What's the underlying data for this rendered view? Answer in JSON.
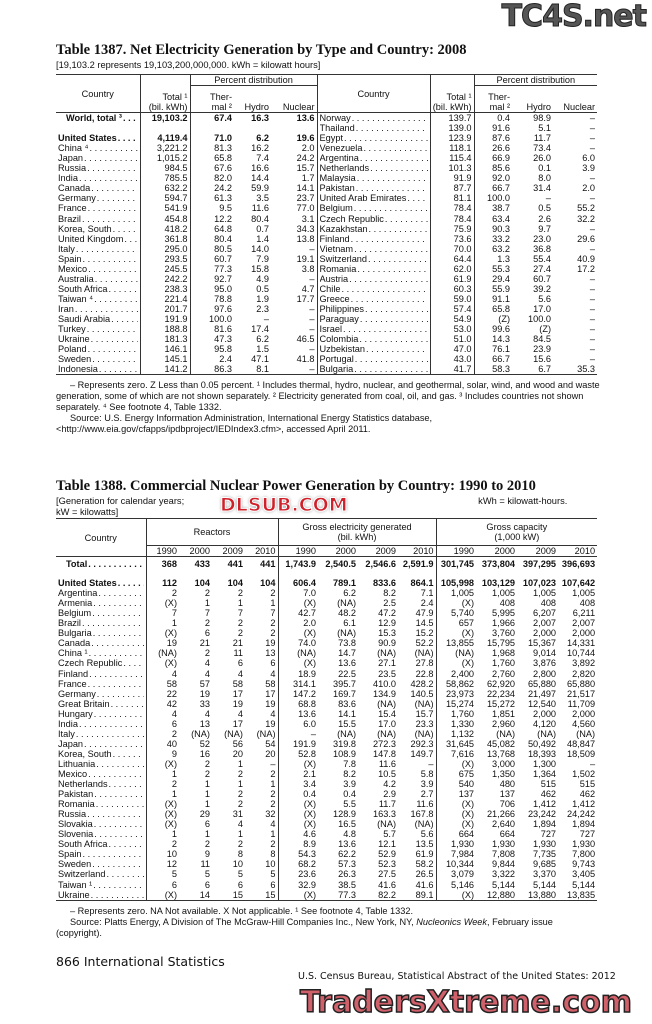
{
  "watermarks": {
    "top": "TC4S.net",
    "middle": "DLSUB.COM",
    "bottom": "TradersXtreme.com"
  },
  "t1387": {
    "title": "Table 1387. Net Electricity Generation by Type and Country: 2008",
    "subtitle": "[19,103.2 represents 19,103,200,000,000. kWh = kilowatt hours]",
    "headers": {
      "country": "Country",
      "pct": "Percent distribution",
      "total1": "Total ¹",
      "total2": "(bil. kWh)",
      "thermal1": "Ther-",
      "thermal2": "mal ²",
      "hydro": "Hydro",
      "nuclear": "Nuclear"
    },
    "left": [
      [
        "World, total ³",
        "19,103.2",
        "67.4",
        "16.3",
        "13.6",
        true
      ],
      [
        "",
        "",
        "",
        "",
        "",
        false
      ],
      [
        "United States",
        "4,119.4",
        "71.0",
        "6.2",
        "19.6",
        true
      ],
      [
        "China ⁴",
        "3,221.2",
        "81.3",
        "16.2",
        "2.0",
        false
      ],
      [
        "Japan",
        "1,015.2",
        "65.8",
        "7.4",
        "24.2",
        false
      ],
      [
        "Russia",
        "984.5",
        "67.6",
        "16.6",
        "15.7",
        false
      ],
      [
        "India",
        "785.5",
        "82.0",
        "14.4",
        "1.7",
        false
      ],
      [
        "Canada",
        "632.2",
        "24.2",
        "59.9",
        "14.1",
        false
      ],
      [
        "Germany",
        "594.7",
        "61.3",
        "3.5",
        "23.7",
        false
      ],
      [
        "France",
        "541.9",
        "9.5",
        "11.6",
        "77.0",
        false
      ],
      [
        "Brazil",
        "454.8",
        "12.2",
        "80.4",
        "3.1",
        false
      ],
      [
        "Korea, South",
        "418.2",
        "64.8",
        "0.7",
        "34.3",
        false
      ],
      [
        "United Kingdom",
        "361.8",
        "80.4",
        "1.4",
        "13.8",
        false
      ],
      [
        "Italy",
        "295.0",
        "80.5",
        "14.0",
        "–",
        false
      ],
      [
        "Spain",
        "293.5",
        "60.7",
        "7.9",
        "19.1",
        false
      ],
      [
        "Mexico",
        "245.5",
        "77.3",
        "15.8",
        "3.8",
        false
      ],
      [
        "Australia",
        "242.2",
        "92.7",
        "4.9",
        "–",
        false
      ],
      [
        "South Africa",
        "238.3",
        "95.0",
        "0.5",
        "4.7",
        false
      ],
      [
        "Taiwan ⁴",
        "221.4",
        "78.8",
        "1.9",
        "17.7",
        false
      ],
      [
        "Iran",
        "201.7",
        "97.6",
        "2.3",
        "–",
        false
      ],
      [
        "Saudi Arabia",
        "191.9",
        "100.0",
        "–",
        "–",
        false
      ],
      [
        "Turkey",
        "188.8",
        "81.6",
        "17.4",
        "–",
        false
      ],
      [
        "Ukraine",
        "181.3",
        "47.3",
        "6.2",
        "46.5",
        false
      ],
      [
        "Poland",
        "146.1",
        "95.8",
        "1.5",
        "–",
        false
      ],
      [
        "Sweden",
        "145.1",
        "2.4",
        "47.1",
        "41.8",
        false
      ],
      [
        "Indonesia",
        "141.2",
        "86.3",
        "8.1",
        "–",
        false
      ]
    ],
    "right": [
      [
        "Norway",
        "139.7",
        "0.4",
        "98.9",
        "–"
      ],
      [
        "Thailand",
        "139.0",
        "91.6",
        "5.1",
        "–"
      ],
      [
        "Egypt",
        "123.9",
        "87.6",
        "11.7",
        "–"
      ],
      [
        "Venezuela",
        "118.1",
        "26.6",
        "73.4",
        "–"
      ],
      [
        "Argentina",
        "115.4",
        "66.9",
        "26.0",
        "6.0"
      ],
      [
        "Netherlands",
        "101.3",
        "85.6",
        "0.1",
        "3.9"
      ],
      [
        "Malaysia",
        "91.9",
        "92.0",
        "8.0",
        "–"
      ],
      [
        "Pakistan",
        "87.7",
        "66.7",
        "31.4",
        "2.0"
      ],
      [
        "United Arab Emirates",
        "81.1",
        "100.0",
        "–",
        "–"
      ],
      [
        "Belgium",
        "78.4",
        "38.7",
        "0.5",
        "55.2"
      ],
      [
        "Czech Republic",
        "78.4",
        "63.4",
        "2.6",
        "32.2"
      ],
      [
        "Kazakhstan",
        "75.9",
        "90.3",
        "9.7",
        "–"
      ],
      [
        "Finland",
        "73.6",
        "33.2",
        "23.0",
        "29.6"
      ],
      [
        "Vietnam",
        "70.0",
        "63.2",
        "36.8",
        "–"
      ],
      [
        "Switzerland",
        "64.4",
        "1.3",
        "55.4",
        "40.9"
      ],
      [
        "Romania",
        "62.0",
        "55.3",
        "27.4",
        "17.2"
      ],
      [
        "Austria",
        "61.9",
        "29.4",
        "60.7",
        "–"
      ],
      [
        "Chile",
        "60.3",
        "55.9",
        "39.2",
        "–"
      ],
      [
        "Greece",
        "59.0",
        "91.1",
        "5.6",
        "–"
      ],
      [
        "Philippines",
        "57.4",
        "65.8",
        "17.0",
        "–"
      ],
      [
        "Paraguay",
        "54.9",
        "(Z)",
        "100.0",
        "–"
      ],
      [
        "Israel",
        "53.0",
        "99.6",
        "(Z)",
        "–"
      ],
      [
        "Colombia",
        "51.0",
        "14.3",
        "84.5",
        "–"
      ],
      [
        "Uzbekistan",
        "47.0",
        "76.1",
        "23.9",
        "–"
      ],
      [
        "Portugal",
        "43.0",
        "66.7",
        "15.6",
        "–"
      ],
      [
        "Bulgaria",
        "41.7",
        "58.3",
        "6.7",
        "35.3"
      ]
    ],
    "note": "– Represents zero. Z Less than 0.05 percent. ¹ Includes thermal, hydro, nuclear, and geothermal, solar, wind, and wood and waste generation, some of which are not shown separately. ² Electricity generated from coal, oil, and gas. ³ Includes countries not shown separately. ⁴ See footnote 4, Table 1332.",
    "source": "Source: U.S. Energy Information Administration, International Energy Statistics database, <http://www.eia.gov/cfapps/ipdbproject/IEDIndex3.cfm>, accessed April 2011."
  },
  "t1388": {
    "title": "Table 1388. Commercial Nuclear Power Generation by Country: 1990 to 2010",
    "subtitle1": "[Generation for calendar years;",
    "subtitle1b": "kWh = kilowatt-hours.",
    "subtitle2": "kW = kilowatts]",
    "headers": {
      "country": "Country",
      "reactors": "Reactors",
      "gen1": "Gross electricity generated",
      "gen2": "(bil. kWh)",
      "cap1": "Gross capacity",
      "cap2": "(1,000 kW)",
      "years": [
        "1990",
        "2000",
        "2009",
        "2010"
      ]
    },
    "total": [
      "Total",
      "368",
      "433",
      "441",
      "441",
      "1,743.9",
      "2,540.5",
      "2,546.6",
      "2,591.9",
      "301,745",
      "373,804",
      "397,295",
      "396,693"
    ],
    "rows": [
      [
        "United States",
        "112",
        "104",
        "104",
        "104",
        "606.4",
        "789.1",
        "833.6",
        "864.1",
        "105,998",
        "103,129",
        "107,023",
        "107,642"
      ],
      [
        "Argentina",
        "2",
        "2",
        "2",
        "2",
        "7.0",
        "6.2",
        "8.2",
        "7.1",
        "1,005",
        "1,005",
        "1,005",
        "1,005"
      ],
      [
        "Armenia",
        "(X)",
        "1",
        "1",
        "1",
        "(X)",
        "(NA)",
        "2.5",
        "2.4",
        "(X)",
        "408",
        "408",
        "408"
      ],
      [
        "Belgium",
        "7",
        "7",
        "7",
        "7",
        "42.7",
        "48.2",
        "47.2",
        "47.9",
        "5,740",
        "5,995",
        "6,207",
        "6,211"
      ],
      [
        "Brazil",
        "1",
        "2",
        "2",
        "2",
        "2.0",
        "6.1",
        "12.9",
        "14.5",
        "657",
        "1,966",
        "2,007",
        "2,007"
      ],
      [
        "Bulgaria",
        "(X)",
        "6",
        "2",
        "2",
        "(X)",
        "(NA)",
        "15.3",
        "15.2",
        "(X)",
        "3,760",
        "2,000",
        "2,000"
      ],
      [
        "Canada",
        "19",
        "21",
        "21",
        "19",
        "74.0",
        "73.8",
        "90.9",
        "52.2",
        "13,855",
        "15,795",
        "15,367",
        "14,331"
      ],
      [
        "China ¹",
        "(NA)",
        "2",
        "11",
        "13",
        "(NA)",
        "14.7",
        "(NA)",
        "(NA)",
        "(NA)",
        "1,968",
        "9,014",
        "10,744"
      ],
      [
        "Czech Republic",
        "(X)",
        "4",
        "6",
        "6",
        "(X)",
        "13.6",
        "27.1",
        "27.8",
        "(X)",
        "1,760",
        "3,876",
        "3,892"
      ],
      [
        "Finland",
        "4",
        "4",
        "4",
        "4",
        "18.9",
        "22.5",
        "23.5",
        "22.8",
        "2,400",
        "2,760",
        "2,800",
        "2,820"
      ],
      [
        "France",
        "58",
        "57",
        "58",
        "58",
        "314.1",
        "395.7",
        "410.0",
        "428.2",
        "58,862",
        "62,920",
        "65,880",
        "65,880"
      ],
      [
        "Germany",
        "22",
        "19",
        "17",
        "17",
        "147.2",
        "169.7",
        "134.9",
        "140.5",
        "23,973",
        "22,234",
        "21,497",
        "21,517"
      ],
      [
        "Great Britain",
        "42",
        "33",
        "19",
        "19",
        "68.8",
        "83.6",
        "(NA)",
        "(NA)",
        "15,274",
        "15,272",
        "12,540",
        "11,709"
      ],
      [
        "Hungary",
        "4",
        "4",
        "4",
        "4",
        "13.6",
        "14.1",
        "15.4",
        "15.7",
        "1,760",
        "1,851",
        "2,000",
        "2,000"
      ],
      [
        "India",
        "6",
        "13",
        "17",
        "19",
        "6.0",
        "15.5",
        "17.0",
        "23.3",
        "1,330",
        "2,960",
        "4,120",
        "4,560"
      ],
      [
        "Italy",
        "2",
        "(NA)",
        "(NA)",
        "(NA)",
        "–",
        "(NA)",
        "(NA)",
        "(NA)",
        "1,132",
        "(NA)",
        "(NA)",
        "(NA)"
      ],
      [
        "Japan",
        "40",
        "52",
        "56",
        "54",
        "191.9",
        "319.8",
        "272.3",
        "292.3",
        "31,645",
        "45,082",
        "50,492",
        "48,847"
      ],
      [
        "Korea, South",
        "9",
        "16",
        "20",
        "20",
        "52.8",
        "108.9",
        "147.8",
        "149.7",
        "7,616",
        "13,768",
        "18,393",
        "18,509"
      ],
      [
        "Lithuania",
        "(X)",
        "2",
        "1",
        "–",
        "(X)",
        "7.8",
        "11.6",
        "–",
        "(X)",
        "3,000",
        "1,300",
        "–"
      ],
      [
        "Mexico",
        "1",
        "2",
        "2",
        "2",
        "2.1",
        "8.2",
        "10.5",
        "5.8",
        "675",
        "1,350",
        "1,364",
        "1,502"
      ],
      [
        "Netherlands",
        "2",
        "1",
        "1",
        "1",
        "3.4",
        "3.9",
        "4.2",
        "3.9",
        "540",
        "480",
        "515",
        "515"
      ],
      [
        "Pakistan",
        "1",
        "1",
        "2",
        "2",
        "0.4",
        "0.4",
        "2.9",
        "2.7",
        "137",
        "137",
        "462",
        "462"
      ],
      [
        "Romania",
        "(X)",
        "1",
        "2",
        "2",
        "(X)",
        "5.5",
        "11.7",
        "11.6",
        "(X)",
        "706",
        "1,412",
        "1,412"
      ],
      [
        "Russia",
        "(X)",
        "29",
        "31",
        "32",
        "(X)",
        "128.9",
        "163.3",
        "167.8",
        "(X)",
        "21,266",
        "23,242",
        "24,242"
      ],
      [
        "Slovakia",
        "(X)",
        "6",
        "4",
        "4",
        "(X)",
        "16.5",
        "(NA)",
        "(NA)",
        "(X)",
        "2,640",
        "1,894",
        "1,894"
      ],
      [
        "Slovenia",
        "1",
        "1",
        "1",
        "1",
        "4.6",
        "4.8",
        "5.7",
        "5.6",
        "664",
        "664",
        "727",
        "727"
      ],
      [
        "South Africa",
        "2",
        "2",
        "2",
        "2",
        "8.9",
        "13.6",
        "12.1",
        "13.5",
        "1,930",
        "1,930",
        "1,930",
        "1,930"
      ],
      [
        "Spain",
        "10",
        "9",
        "8",
        "8",
        "54.3",
        "62.2",
        "52.9",
        "61.9",
        "7,984",
        "7,808",
        "7,735",
        "7,800"
      ],
      [
        "Sweden",
        "12",
        "11",
        "10",
        "10",
        "68.2",
        "57.3",
        "52.3",
        "58.2",
        "10,344",
        "9,844",
        "9,685",
        "9,743"
      ],
      [
        "Switzerland",
        "5",
        "5",
        "5",
        "5",
        "23.6",
        "26.3",
        "27.5",
        "26.5",
        "3,079",
        "3,322",
        "3,370",
        "3,405"
      ],
      [
        "Taiwan ¹",
        "6",
        "6",
        "6",
        "6",
        "32.9",
        "38.5",
        "41.6",
        "41.6",
        "5,146",
        "5,144",
        "5,144",
        "5,144"
      ],
      [
        "Ukraine",
        "(X)",
        "14",
        "15",
        "15",
        "(X)",
        "77.3",
        "82.2",
        "89.1",
        "(X)",
        "12,880",
        "13,880",
        "13,835"
      ]
    ],
    "note": "– Represents zero. NA Not available. X Not applicable. ¹ See footnote 4, Table 1332.",
    "source_a": "Source: Platts Energy, A Division of The McGraw-Hill Companies Inc., New York, NY, ",
    "source_i": "Nucleonics Week",
    "source_b": ", February issue (copyright)."
  },
  "footer": {
    "left": "866  International Statistics",
    "right": "U.S. Census Bureau, Statistical Abstract of the United States: 2012"
  }
}
